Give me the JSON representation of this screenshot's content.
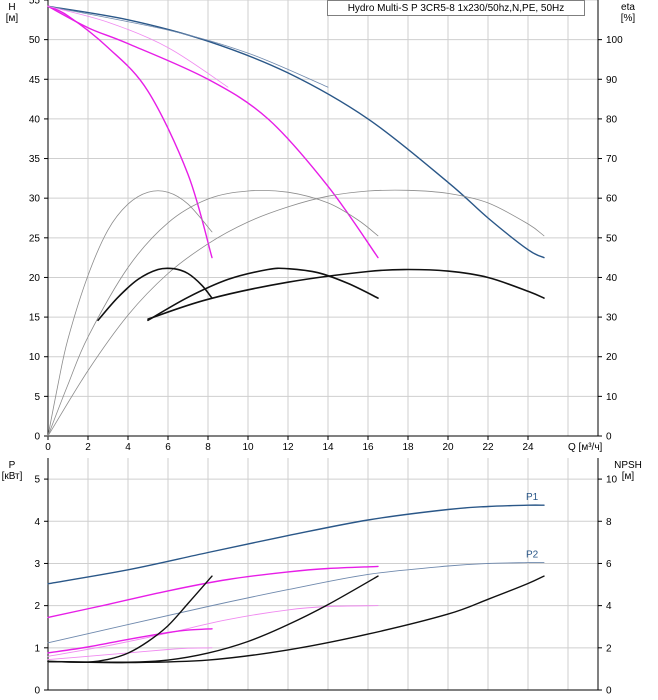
{
  "title": "Hydro Multi-S P 3CR5-8 1x230/50hz,N,PE, 50Hz",
  "colors": {
    "grid": "#cfcfcf",
    "axis": "#000000",
    "navy": "#2a5788",
    "magenta": "#e71ee7",
    "black": "#111111",
    "gray": "#8c8c8c",
    "navy_light": "#6f89ad",
    "magenta_light": "#f08af0"
  },
  "chart_data": [
    {
      "id": "head",
      "type": "line",
      "ylabel_top": "H",
      "ylabel_unit": "[м]",
      "y2label_top": "eta",
      "y2label_unit": "[%]",
      "xlabel": "Q [м³/ч]",
      "xlim": [
        0,
        27.5
      ],
      "ylim": [
        0,
        55
      ],
      "y2lim": [
        0,
        110
      ],
      "x_ticks": [
        0,
        2,
        4,
        6,
        8,
        10,
        12,
        14,
        16,
        18,
        20,
        22,
        24
      ],
      "y_ticks": [
        0,
        5,
        10,
        15,
        20,
        25,
        30,
        35,
        40,
        45,
        50,
        55
      ],
      "y2_ticks": [
        0,
        10,
        20,
        30,
        40,
        50,
        60,
        70,
        80,
        90,
        100
      ],
      "series": [
        {
          "name": "H max",
          "axis": "y",
          "color": "navy",
          "width": 1.4,
          "points": [
            [
              0,
              54.2
            ],
            [
              4,
              52.5
            ],
            [
              8,
              49.8
            ],
            [
              12,
              45.8
            ],
            [
              16,
              40.0
            ],
            [
              20,
              32.0
            ],
            [
              22,
              27.5
            ],
            [
              24,
              23.5
            ],
            [
              24.8,
              22.5
            ]
          ]
        },
        {
          "name": "H faint",
          "axis": "y",
          "color": "navy_light",
          "width": 0.8,
          "points": [
            [
              0,
              54.2
            ],
            [
              6,
              51.2
            ],
            [
              10,
              48.3
            ],
            [
              14,
              44.0
            ]
          ]
        },
        {
          "name": "H mid",
          "axis": "y",
          "color": "magenta",
          "width": 1.4,
          "points": [
            [
              0,
              54.2
            ],
            [
              2,
              51.5
            ],
            [
              4,
              49.5
            ],
            [
              8,
              45.0
            ],
            [
              11,
              40.0
            ],
            [
              14,
              31.5
            ],
            [
              16.5,
              22.5
            ]
          ]
        },
        {
          "name": "H low",
          "axis": "y",
          "color": "magenta",
          "width": 1.4,
          "points": [
            [
              0,
              54.2
            ],
            [
              1,
              53.0
            ],
            [
              3,
              49.0
            ],
            [
              5,
              43.5
            ],
            [
              7,
              33.0
            ],
            [
              8.2,
              22.5
            ]
          ]
        },
        {
          "name": "H faint mid",
          "axis": "y",
          "color": "magenta_light",
          "width": 0.8,
          "points": [
            [
              0,
              54.2
            ],
            [
              3,
              52.2
            ],
            [
              6,
              49.0
            ],
            [
              9,
              44.0
            ]
          ]
        },
        {
          "name": "eta max",
          "axis": "y2",
          "color": "gray",
          "width": 0.8,
          "points": [
            [
              0,
              0
            ],
            [
              2,
              16.5
            ],
            [
              4,
              30.5
            ],
            [
              6,
              41.0
            ],
            [
              8,
              48.5
            ],
            [
              10,
              54.0
            ],
            [
              12,
              57.8
            ],
            [
              14,
              60.5
            ],
            [
              16,
              61.8
            ],
            [
              18,
              62.0
            ],
            [
              20,
              61.2
            ],
            [
              22,
              58.8
            ],
            [
              24,
              53.5
            ],
            [
              24.8,
              50.5
            ]
          ]
        },
        {
          "name": "eta mid",
          "axis": "y2",
          "color": "gray",
          "width": 0.8,
          "points": [
            [
              0,
              0
            ],
            [
              1,
              13.0
            ],
            [
              2,
              25.0
            ],
            [
              4,
              42.5
            ],
            [
              6,
              53.8
            ],
            [
              8,
              59.8
            ],
            [
              10,
              61.8
            ],
            [
              12,
              61.5
            ],
            [
              14,
              58.8
            ],
            [
              15.5,
              54.5
            ],
            [
              16.5,
              50.5
            ]
          ]
        },
        {
          "name": "eta low",
          "axis": "y2",
          "color": "gray",
          "width": 0.8,
          "points": [
            [
              0,
              0
            ],
            [
              0.5,
              13.0
            ],
            [
              1,
              24.5
            ],
            [
              2,
              40.5
            ],
            [
              3,
              52.0
            ],
            [
              4,
              58.5
            ],
            [
              5,
              61.5
            ],
            [
              6,
              61.5
            ],
            [
              7,
              58.5
            ],
            [
              8.2,
              51.5
            ]
          ]
        },
        {
          "name": "eta op max",
          "axis": "y2",
          "color": "black",
          "width": 1.6,
          "points": [
            [
              5,
              29.5
            ],
            [
              8,
              34.5
            ],
            [
              12,
              38.8
            ],
            [
              16,
              41.5
            ],
            [
              18,
              42.0
            ],
            [
              20,
              41.6
            ],
            [
              22,
              40.0
            ],
            [
              24,
              36.5
            ],
            [
              24.8,
              34.8
            ]
          ]
        },
        {
          "name": "eta op mid",
          "axis": "y2",
          "color": "black",
          "width": 1.6,
          "points": [
            [
              5,
              29.2
            ],
            [
              7,
              35.0
            ],
            [
              9,
              39.5
            ],
            [
              11,
              42.0
            ],
            [
              12,
              42.2
            ],
            [
              13.5,
              41.2
            ],
            [
              15,
              38.5
            ],
            [
              16.5,
              34.8
            ]
          ]
        },
        {
          "name": "eta op low",
          "axis": "y2",
          "color": "black",
          "width": 1.6,
          "points": [
            [
              2.5,
              29.2
            ],
            [
              3.5,
              35.0
            ],
            [
              4.5,
              39.5
            ],
            [
              5.5,
              42.0
            ],
            [
              6.3,
              42.2
            ],
            [
              7,
              41.0
            ],
            [
              7.7,
              38.0
            ],
            [
              8.2,
              34.8
            ]
          ]
        }
      ]
    },
    {
      "id": "power",
      "type": "line",
      "ylabel_top": "P",
      "ylabel_unit": "[кВт]",
      "y2label_top": "NPSH",
      "y2label_unit": "[м]",
      "xlim": [
        0,
        27.5
      ],
      "ylim": [
        0,
        5.5
      ],
      "y2lim": [
        0,
        11
      ],
      "y_ticks": [
        0,
        1,
        2,
        3,
        4,
        5
      ],
      "y2_ticks": [
        0,
        2,
        4,
        6,
        8,
        10
      ],
      "series": [
        {
          "name": "P1",
          "label": "P1",
          "axis": "y",
          "color": "navy",
          "width": 1.4,
          "points": [
            [
              0,
              2.52
            ],
            [
              4,
              2.85
            ],
            [
              8,
              3.26
            ],
            [
              12,
              3.66
            ],
            [
              16,
              4.03
            ],
            [
              20,
              4.28
            ],
            [
              22,
              4.35
            ],
            [
              24,
              4.38
            ],
            [
              24.8,
              4.38
            ]
          ]
        },
        {
          "name": "P2",
          "label": "P2",
          "axis": "y",
          "color": "navy_light",
          "width": 0.9,
          "points": [
            [
              0,
              1.12
            ],
            [
              4,
              1.55
            ],
            [
              8,
              1.98
            ],
            [
              12,
              2.38
            ],
            [
              16,
              2.74
            ],
            [
              20,
              2.94
            ],
            [
              22,
              3.0
            ],
            [
              24,
              3.02
            ],
            [
              24.8,
              3.02
            ]
          ]
        },
        {
          "name": "P1 mid",
          "axis": "y",
          "color": "magenta",
          "width": 1.4,
          "points": [
            [
              0,
              1.72
            ],
            [
              3,
              2.03
            ],
            [
              6,
              2.35
            ],
            [
              9,
              2.62
            ],
            [
              12,
              2.8
            ],
            [
              14,
              2.88
            ],
            [
              16.5,
              2.93
            ]
          ]
        },
        {
          "name": "P2 mid",
          "axis": "y",
          "color": "magenta_light",
          "width": 0.9,
          "points": [
            [
              0,
              0.8
            ],
            [
              3,
              1.05
            ],
            [
              6,
              1.35
            ],
            [
              9,
              1.67
            ],
            [
              12,
              1.9
            ],
            [
              14,
              1.98
            ],
            [
              16.5,
              2.0
            ]
          ]
        },
        {
          "name": "P1 low",
          "axis": "y",
          "color": "magenta",
          "width": 1.4,
          "points": [
            [
              0,
              0.88
            ],
            [
              2,
              1.02
            ],
            [
              4,
              1.2
            ],
            [
              6,
              1.36
            ],
            [
              7,
              1.42
            ],
            [
              8.2,
              1.45
            ]
          ]
        },
        {
          "name": "P2 low",
          "axis": "y",
          "color": "magenta_light",
          "width": 0.9,
          "points": [
            [
              0,
              0.72
            ],
            [
              2,
              0.8
            ],
            [
              4,
              0.88
            ],
            [
              6,
              0.96
            ],
            [
              7,
              0.99
            ],
            [
              8.2,
              1.0
            ]
          ]
        },
        {
          "name": "NPSH max",
          "axis": "y2",
          "color": "black",
          "width": 1.4,
          "points": [
            [
              0,
              1.35
            ],
            [
              4,
              1.3
            ],
            [
              8,
              1.42
            ],
            [
              12,
              1.9
            ],
            [
              16,
              2.65
            ],
            [
              20,
              3.6
            ],
            [
              22,
              4.3
            ],
            [
              24,
              5.05
            ],
            [
              24.8,
              5.4
            ]
          ]
        },
        {
          "name": "NPSH mid",
          "axis": "y2",
          "color": "black",
          "width": 1.4,
          "points": [
            [
              0,
              1.35
            ],
            [
              4,
              1.32
            ],
            [
              6,
              1.42
            ],
            [
              8,
              1.75
            ],
            [
              10,
              2.3
            ],
            [
              12,
              3.1
            ],
            [
              14,
              4.05
            ],
            [
              16.5,
              5.4
            ]
          ]
        },
        {
          "name": "NPSH low",
          "axis": "y2",
          "color": "black",
          "width": 1.4,
          "points": [
            [
              0,
              1.35
            ],
            [
              2,
              1.32
            ],
            [
              3,
              1.45
            ],
            [
              4,
              1.75
            ],
            [
              5,
              2.3
            ],
            [
              6,
              3.05
            ],
            [
              7,
              4.1
            ],
            [
              8.2,
              5.4
            ]
          ]
        }
      ]
    }
  ]
}
